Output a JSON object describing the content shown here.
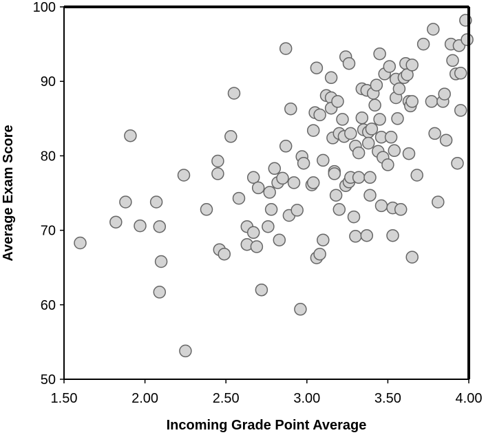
{
  "chart_data": {
    "type": "scatter",
    "xlabel": "Incoming Grade Point Average",
    "ylabel": "Average Exam Score",
    "xlim": [
      1.5,
      4.0
    ],
    "ylim": [
      50,
      100
    ],
    "xticks": [
      "1.50",
      "2.00",
      "2.50",
      "3.00",
      "3.50",
      "4.00"
    ],
    "yticks": [
      "50",
      "60",
      "70",
      "80",
      "90",
      "100"
    ],
    "grid": false,
    "legend": "none",
    "marker_fill": "#d4d4d4",
    "marker_stroke": "#666666",
    "points": [
      [
        1.6,
        68.3
      ],
      [
        1.82,
        71.1
      ],
      [
        1.88,
        73.8
      ],
      [
        1.91,
        82.7
      ],
      [
        1.97,
        70.6
      ],
      [
        2.07,
        73.8
      ],
      [
        2.09,
        61.7
      ],
      [
        2.09,
        70.5
      ],
      [
        2.1,
        65.8
      ],
      [
        2.24,
        77.4
      ],
      [
        2.25,
        53.8
      ],
      [
        2.38,
        72.8
      ],
      [
        2.45,
        79.3
      ],
      [
        2.45,
        77.6
      ],
      [
        2.46,
        67.4
      ],
      [
        2.49,
        66.8
      ],
      [
        2.53,
        82.6
      ],
      [
        2.55,
        88.4
      ],
      [
        2.58,
        74.3
      ],
      [
        2.63,
        70.5
      ],
      [
        2.63,
        68.1
      ],
      [
        2.67,
        77.1
      ],
      [
        2.67,
        69.7
      ],
      [
        2.69,
        67.8
      ],
      [
        2.7,
        75.7
      ],
      [
        2.72,
        62.0
      ],
      [
        2.76,
        70.5
      ],
      [
        2.77,
        75.1
      ],
      [
        2.78,
        72.8
      ],
      [
        2.8,
        78.3
      ],
      [
        2.82,
        76.4
      ],
      [
        2.83,
        68.7
      ],
      [
        2.85,
        77.0
      ],
      [
        2.87,
        94.4
      ],
      [
        2.87,
        81.3
      ],
      [
        2.89,
        72.0
      ],
      [
        2.9,
        86.3
      ],
      [
        2.92,
        76.4
      ],
      [
        2.94,
        72.7
      ],
      [
        2.96,
        59.4
      ],
      [
        2.97,
        79.9
      ],
      [
        2.98,
        79.0
      ],
      [
        3.03,
        76.1
      ],
      [
        3.04,
        76.4
      ],
      [
        3.04,
        83.4
      ],
      [
        3.05,
        85.8
      ],
      [
        3.06,
        91.8
      ],
      [
        3.06,
        66.3
      ],
      [
        3.08,
        66.8
      ],
      [
        3.08,
        85.5
      ],
      [
        3.1,
        79.4
      ],
      [
        3.1,
        68.7
      ],
      [
        3.12,
        88.1
      ],
      [
        3.15,
        90.5
      ],
      [
        3.15,
        87.8
      ],
      [
        3.15,
        86.4
      ],
      [
        3.16,
        82.4
      ],
      [
        3.17,
        77.9
      ],
      [
        3.17,
        77.6
      ],
      [
        3.18,
        74.7
      ],
      [
        3.19,
        87.3
      ],
      [
        3.2,
        83.0
      ],
      [
        3.2,
        72.8
      ],
      [
        3.22,
        84.9
      ],
      [
        3.23,
        82.6
      ],
      [
        3.24,
        93.3
      ],
      [
        3.24,
        76.0
      ],
      [
        3.26,
        92.4
      ],
      [
        3.26,
        76.5
      ],
      [
        3.27,
        83.0
      ],
      [
        3.27,
        77.1
      ],
      [
        3.29,
        71.8
      ],
      [
        3.3,
        81.3
      ],
      [
        3.3,
        69.2
      ],
      [
        3.32,
        80.4
      ],
      [
        3.32,
        77.1
      ],
      [
        3.34,
        89.0
      ],
      [
        3.34,
        85.1
      ],
      [
        3.35,
        83.5
      ],
      [
        3.37,
        88.8
      ],
      [
        3.37,
        69.3
      ],
      [
        3.38,
        83.2
      ],
      [
        3.38,
        81.7
      ],
      [
        3.39,
        74.7
      ],
      [
        3.39,
        77.1
      ],
      [
        3.4,
        83.6
      ],
      [
        3.41,
        88.4
      ],
      [
        3.42,
        86.8
      ],
      [
        3.43,
        89.5
      ],
      [
        3.44,
        80.6
      ],
      [
        3.45,
        93.7
      ],
      [
        3.45,
        84.9
      ],
      [
        3.46,
        82.5
      ],
      [
        3.46,
        73.3
      ],
      [
        3.47,
        79.8
      ],
      [
        3.48,
        91.0
      ],
      [
        3.5,
        78.8
      ],
      [
        3.51,
        92.0
      ],
      [
        3.52,
        82.5
      ],
      [
        3.53,
        73.0
      ],
      [
        3.53,
        69.3
      ],
      [
        3.54,
        80.7
      ],
      [
        3.55,
        90.3
      ],
      [
        3.55,
        87.8
      ],
      [
        3.56,
        85.0
      ],
      [
        3.57,
        89.0
      ],
      [
        3.58,
        72.8
      ],
      [
        3.6,
        90.5
      ],
      [
        3.61,
        92.4
      ],
      [
        3.62,
        90.9
      ],
      [
        3.63,
        87.3
      ],
      [
        3.63,
        80.3
      ],
      [
        3.64,
        86.7
      ],
      [
        3.65,
        92.2
      ],
      [
        3.65,
        87.3
      ],
      [
        3.65,
        66.4
      ],
      [
        3.68,
        77.4
      ],
      [
        3.72,
        95.0
      ],
      [
        3.77,
        87.3
      ],
      [
        3.78,
        97.0
      ],
      [
        3.79,
        83.0
      ],
      [
        3.81,
        73.8
      ],
      [
        3.84,
        87.3
      ],
      [
        3.85,
        88.3
      ],
      [
        3.86,
        82.1
      ],
      [
        3.89,
        95.0
      ],
      [
        3.9,
        92.8
      ],
      [
        3.92,
        91.0
      ],
      [
        3.93,
        79.0
      ],
      [
        3.94,
        94.8
      ],
      [
        3.95,
        91.1
      ],
      [
        3.95,
        86.1
      ],
      [
        3.98,
        98.2
      ],
      [
        3.99,
        95.6
      ]
    ]
  }
}
